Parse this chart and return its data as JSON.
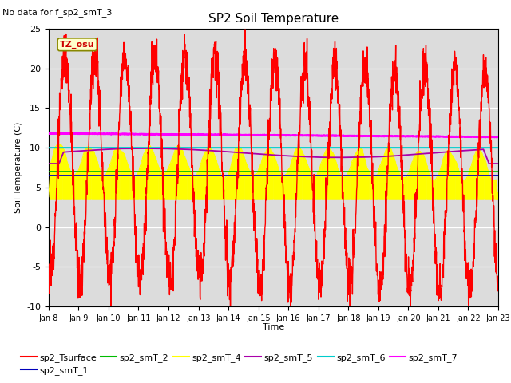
{
  "title": "SP2 Soil Temperature",
  "no_data_text": "No data for f_sp2_smT_3",
  "xlabel": "Time",
  "ylabel": "Soil Temperature (C)",
  "ylim": [
    -10,
    25
  ],
  "tz_label": "TZ_osu",
  "x_tick_labels": [
    "Jan 8",
    "Jan 9",
    "Jan 10",
    "Jan 11",
    "Jan 12",
    "Jan 13",
    "Jan 14",
    "Jan 15",
    "Jan 16",
    "Jan 17",
    "Jan 18",
    "Jan 19",
    "Jan 20",
    "Jan 21",
    "Jan 22",
    "Jan 23"
  ],
  "bg_color": "#dcdcdc",
  "grid_color": "#ffffff",
  "colors": {
    "sp2_Tsurface": "#ff0000",
    "sp2_smT_1": "#0000bb",
    "sp2_smT_2": "#00bb00",
    "sp2_smT_4": "#ffff00",
    "sp2_smT_5": "#aa00aa",
    "sp2_smT_6": "#00cccc",
    "sp2_smT_7": "#ff00ff"
  },
  "n_days": 15,
  "pts_per_day": 144,
  "seed": 12
}
